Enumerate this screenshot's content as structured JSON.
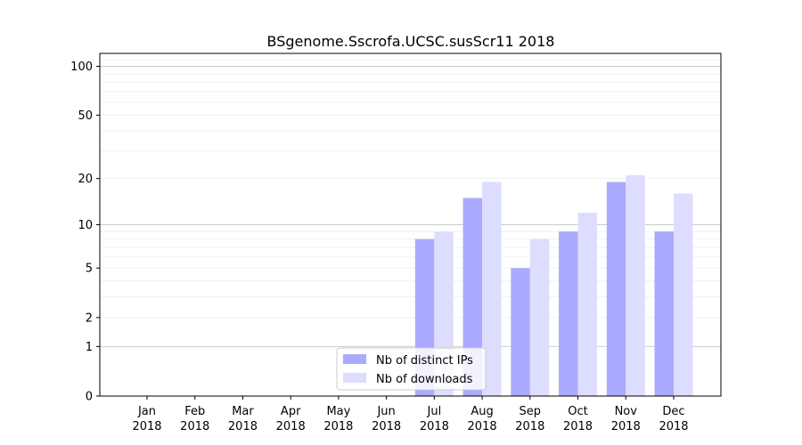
{
  "chart_data": {
    "type": "bar",
    "title": "BSgenome.Sscrofa.UCSC.susScr11 2018",
    "xlabel": "",
    "ylabel": "",
    "y_scale": "log(1+y)",
    "ylim": [
      0,
      120
    ],
    "y_ticks": [
      0,
      1,
      2,
      5,
      10,
      20,
      50,
      100
    ],
    "categories": [
      "Jan",
      "Feb",
      "Mar",
      "Apr",
      "May",
      "Jun",
      "Jul",
      "Aug",
      "Sep",
      "Oct",
      "Nov",
      "Dec"
    ],
    "category_year": "2018",
    "series": [
      {
        "name": "Nb of distinct IPs",
        "color": "#aaaaff",
        "values": [
          0,
          0,
          0,
          0,
          0,
          0,
          8,
          15,
          5,
          9,
          19,
          9
        ]
      },
      {
        "name": "Nb of downloads",
        "color": "#ddddff",
        "values": [
          0,
          0,
          0,
          0,
          0,
          0,
          9,
          19,
          8,
          12,
          21,
          16
        ]
      }
    ],
    "grid": "horizontal",
    "legend_position": "lower-center"
  }
}
